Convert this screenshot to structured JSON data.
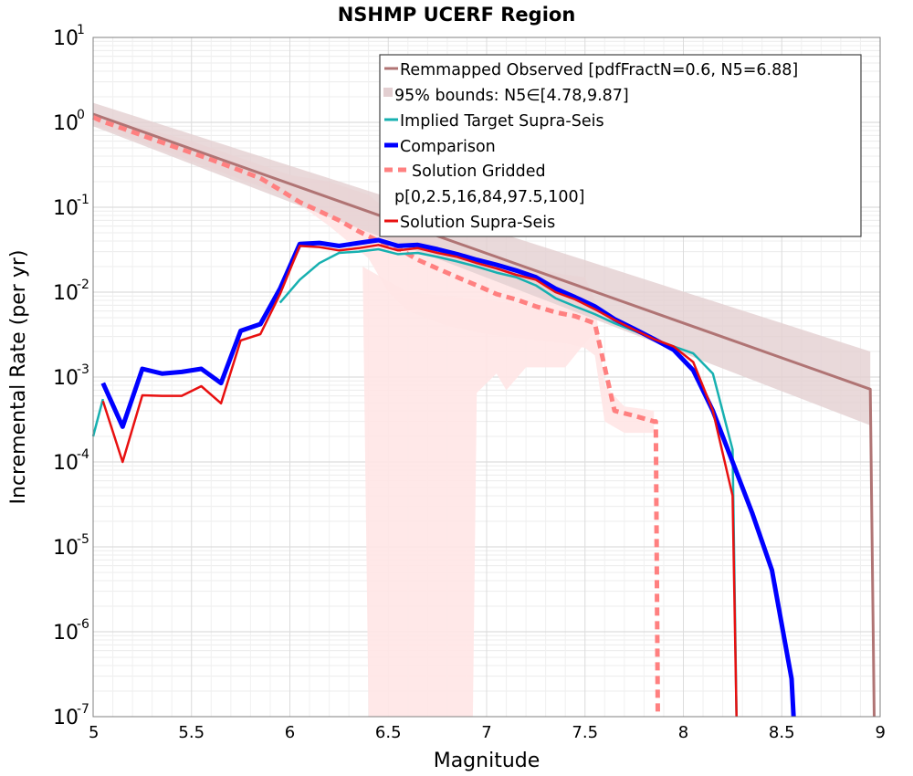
{
  "chart_data": {
    "type": "line",
    "title": "NSHMP UCERF Region",
    "xlabel": "Magnitude",
    "ylabel": "Incremental Rate (per yr)",
    "xlim": [
      5,
      9
    ],
    "ylim": [
      1e-07,
      10
    ],
    "yscale": "log",
    "grid": true,
    "legend_position": "top-right",
    "x_ticks": [
      "5",
      "5.5",
      "6",
      "6.5",
      "7",
      "7.5",
      "8",
      "8.5",
      "9"
    ],
    "y_ticks": [
      {
        "base": "10",
        "exp": "-7"
      },
      {
        "base": "10",
        "exp": "-6"
      },
      {
        "base": "10",
        "exp": "-5"
      },
      {
        "base": "10",
        "exp": "-4"
      },
      {
        "base": "10",
        "exp": "-3"
      },
      {
        "base": "10",
        "exp": "-2"
      },
      {
        "base": "10",
        "exp": "-1"
      },
      {
        "base": "10",
        "exp": "0"
      },
      {
        "base": "10",
        "exp": "1"
      }
    ],
    "legend": [
      "Remmapped Observed [pdfFractN=0.6, N5=6.88]",
      "95% bounds: N5∈[4.78,9.87]",
      "Implied Target Supra-Seis",
      "Comparison",
      "Solution Gridded",
      "p[0,2.5,16,84,97.5,100]",
      "Solution Supra-Seis"
    ],
    "colors": {
      "observed": "#b07474",
      "observed_band": "#e3cfd1",
      "target": "#17b0b0",
      "comparison": "#0000ff",
      "gridded": "#ff8080",
      "percentile_band": "#ffe5e5",
      "supra": "#e81010"
    },
    "series": [
      {
        "name": "Remmapped Observed [pdfFractN=0.6, N5=6.88]",
        "x": [
          5.0,
          8.95,
          8.95,
          8.97
        ],
        "y": [
          1.25,
          0.00072,
          0.00072,
          1e-07
        ]
      },
      {
        "name": "95% bounds: N5∈[4.78,9.87]",
        "x": [
          5.0,
          8.95
        ],
        "upper": [
          1.7,
          0.002
        ],
        "lower": [
          0.9,
          0.00027
        ]
      },
      {
        "name": "Implied Target Supra-Seis",
        "x": [
          5.0,
          5.05,
          5.15,
          5.25,
          5.35,
          5.45,
          5.55,
          5.65,
          5.75,
          5.85,
          5.95,
          6.05,
          6.15,
          6.25,
          6.35,
          6.45,
          6.55,
          6.65,
          6.75,
          6.85,
          6.95,
          7.05,
          7.15,
          7.25,
          7.35,
          7.45,
          7.55,
          7.65,
          7.75,
          7.85,
          7.95,
          8.05,
          8.15,
          8.25,
          8.27
        ],
        "y": [
          0.0002,
          0.00055,
          null,
          null,
          null,
          null,
          null,
          null,
          null,
          null,
          0.0075,
          0.014,
          0.022,
          0.029,
          0.03,
          0.032,
          0.028,
          0.029,
          0.026,
          0.023,
          0.02,
          0.017,
          0.015,
          0.012,
          0.0085,
          0.0068,
          0.0055,
          0.0043,
          0.0035,
          0.0028,
          0.0023,
          0.0019,
          0.0011,
          0.00014,
          1e-07
        ]
      },
      {
        "name": "Comparison",
        "x": [
          5.05,
          5.15,
          5.25,
          5.35,
          5.45,
          5.55,
          5.65,
          5.75,
          5.85,
          5.95,
          6.05,
          6.15,
          6.25,
          6.35,
          6.45,
          6.55,
          6.65,
          6.75,
          6.85,
          6.95,
          7.05,
          7.15,
          7.25,
          7.35,
          7.45,
          7.55,
          7.65,
          7.75,
          7.85,
          7.95,
          8.05,
          8.15,
          8.25,
          8.35,
          8.45,
          8.55,
          8.56
        ],
        "y": [
          0.00085,
          0.00026,
          0.00125,
          0.0011,
          0.00115,
          0.00125,
          0.00085,
          0.0035,
          0.0042,
          0.011,
          0.037,
          0.038,
          0.035,
          0.038,
          0.041,
          0.035,
          0.036,
          0.032,
          0.028,
          0.024,
          0.021,
          0.018,
          0.015,
          0.011,
          0.0087,
          0.0068,
          0.0048,
          0.0037,
          0.0028,
          0.0021,
          0.0012,
          0.0004,
          0.0001,
          2.5e-05,
          5.3e-06,
          2.8e-07,
          1e-07
        ]
      },
      {
        "name": "Solution Gridded",
        "x": [
          5.0,
          5.05,
          5.15,
          5.25,
          5.35,
          5.45,
          5.55,
          5.65,
          5.75,
          5.85,
          5.95,
          6.05,
          6.15,
          6.25,
          6.35,
          6.45,
          6.55,
          6.65,
          6.75,
          6.85,
          6.95,
          7.05,
          7.15,
          7.25,
          7.35,
          7.45,
          7.55,
          7.65,
          7.75,
          7.85,
          7.86,
          7.87
        ],
        "y": [
          1.15,
          1.02,
          0.85,
          0.7,
          0.58,
          0.48,
          0.4,
          0.33,
          0.27,
          0.22,
          0.16,
          0.115,
          0.09,
          0.07,
          0.052,
          0.04,
          0.033,
          0.024,
          0.019,
          0.015,
          0.012,
          0.0095,
          0.0082,
          0.0068,
          0.0058,
          0.0052,
          0.0043,
          0.0004,
          0.00035,
          0.0003,
          0.0003,
          1e-07
        ]
      },
      {
        "name": "p[0,2.5,16,84,97.5,100]",
        "x": [
          5.0,
          5.5,
          6.0,
          6.2,
          6.4,
          6.5,
          6.6,
          6.8,
          7.0,
          7.2,
          7.4,
          7.5,
          7.55,
          7.6,
          7.7,
          7.8,
          7.85
        ],
        "upper": [
          1.25,
          0.6,
          0.24,
          0.2,
          0.14,
          0.09,
          0.06,
          0.04,
          0.026,
          0.02,
          0.016,
          0.015,
          0.008,
          0.0008,
          0.00045,
          0.00042,
          0.0004
        ],
        "lower": [
          0.95,
          0.35,
          0.13,
          0.06,
          0.025,
          0.01,
          0.006,
          0.004,
          0.0032,
          0.0028,
          0.0025,
          0.0022,
          0.0018,
          0.0003,
          0.00022,
          0.00022,
          0.00022
        ]
      },
      {
        "name": "Solution Supra-Seis",
        "x": [
          5.05,
          5.15,
          5.25,
          5.35,
          5.45,
          5.55,
          5.65,
          5.75,
          5.85,
          5.95,
          6.05,
          6.15,
          6.25,
          6.35,
          6.45,
          6.55,
          6.65,
          6.75,
          6.85,
          6.95,
          7.05,
          7.15,
          7.25,
          7.35,
          7.45,
          7.55,
          7.65,
          7.75,
          7.85,
          7.95,
          8.05,
          8.15,
          8.25,
          8.27
        ],
        "y": [
          0.00052,
          0.0001,
          0.00061,
          0.0006,
          0.0006,
          0.00078,
          0.00049,
          0.0027,
          0.0032,
          0.0095,
          0.035,
          0.034,
          0.031,
          0.033,
          0.036,
          0.031,
          0.033,
          0.029,
          0.026,
          0.022,
          0.019,
          0.016,
          0.014,
          0.01,
          0.0082,
          0.0063,
          0.0047,
          0.0036,
          0.0028,
          0.0023,
          0.0015,
          0.0004,
          4e-05,
          1e-07
        ]
      }
    ]
  }
}
